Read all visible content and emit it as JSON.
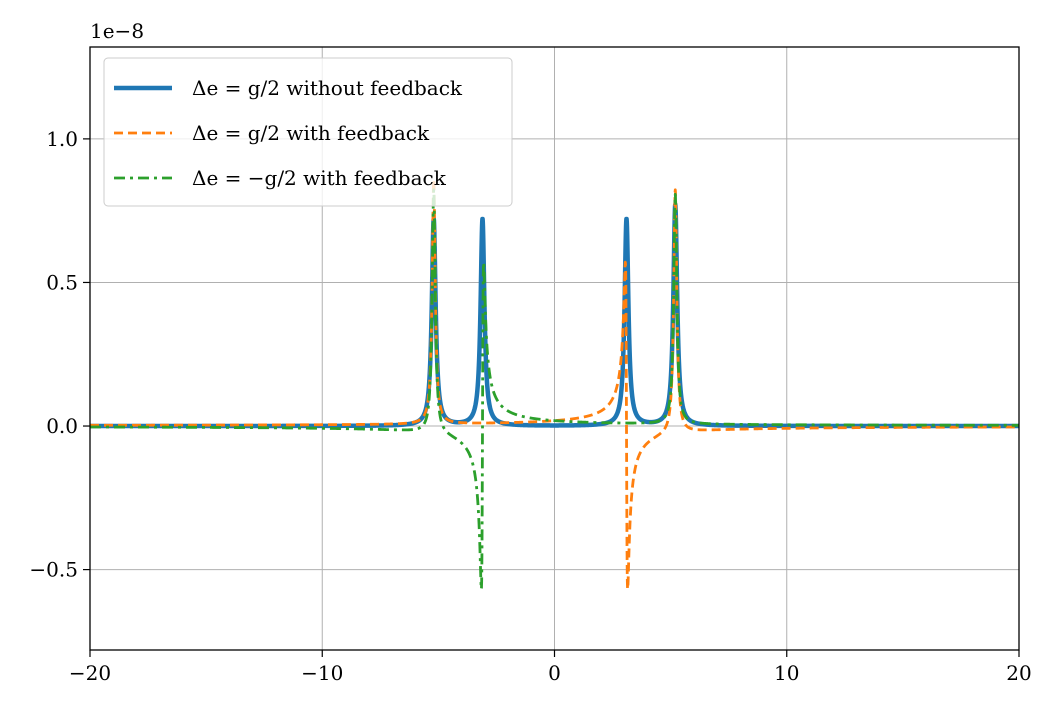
{
  "chart_data": {
    "type": "line",
    "title": "",
    "xlabel": "",
    "ylabel": "",
    "y_offset_label": "1e−8",
    "y_scale": 1e-08,
    "xlim": [
      -20,
      20
    ],
    "ylim": [
      -0.78,
      1.32
    ],
    "xticks": [
      -20,
      -10,
      0,
      10,
      20
    ],
    "xtick_labels": [
      "−20",
      "−10",
      "0",
      "10",
      "20"
    ],
    "yticks": [
      -0.5,
      0.0,
      0.5,
      1.0
    ],
    "ytick_labels": [
      "−0.5",
      "0.0",
      "0.5",
      "1.0"
    ],
    "grid": true,
    "legend_position": "top-left",
    "series": [
      {
        "name": "Δe = g/2 without feedback",
        "color": "#1f77b4",
        "style": "solid",
        "peaks": [
          {
            "x0": -5.2,
            "amp": 0.72,
            "gamma": 0.1
          },
          {
            "x0": -3.1,
            "amp": 0.72,
            "gamma": 0.1
          },
          {
            "x0": 3.1,
            "amp": 0.72,
            "gamma": 0.1
          },
          {
            "x0": 5.2,
            "amp": 0.77,
            "gamma": 0.1
          }
        ],
        "dispersive": []
      },
      {
        "name": "Δe = g/2 with feedback",
        "color": "#ff7f0e",
        "style": "dashed",
        "peaks": [
          {
            "x0": -5.2,
            "amp": 0.85,
            "gamma": 0.08
          },
          {
            "x0": 5.2,
            "amp": 0.85,
            "gamma": 0.08
          }
        ],
        "dispersive": [
          {
            "x0": 3.1,
            "amp": 0.95,
            "gamma": 0.05,
            "sign": -1
          }
        ]
      },
      {
        "name": "Δe = −g/2 with feedback",
        "color": "#2ca02c",
        "style": "dashdot",
        "peaks": [
          {
            "x0": -5.2,
            "amp": 0.85,
            "gamma": 0.08
          },
          {
            "x0": 5.2,
            "amp": 0.8,
            "gamma": 0.08
          }
        ],
        "dispersive": [
          {
            "x0": -3.1,
            "amp": 0.95,
            "gamma": 0.05,
            "sign": 1
          }
        ]
      }
    ]
  }
}
